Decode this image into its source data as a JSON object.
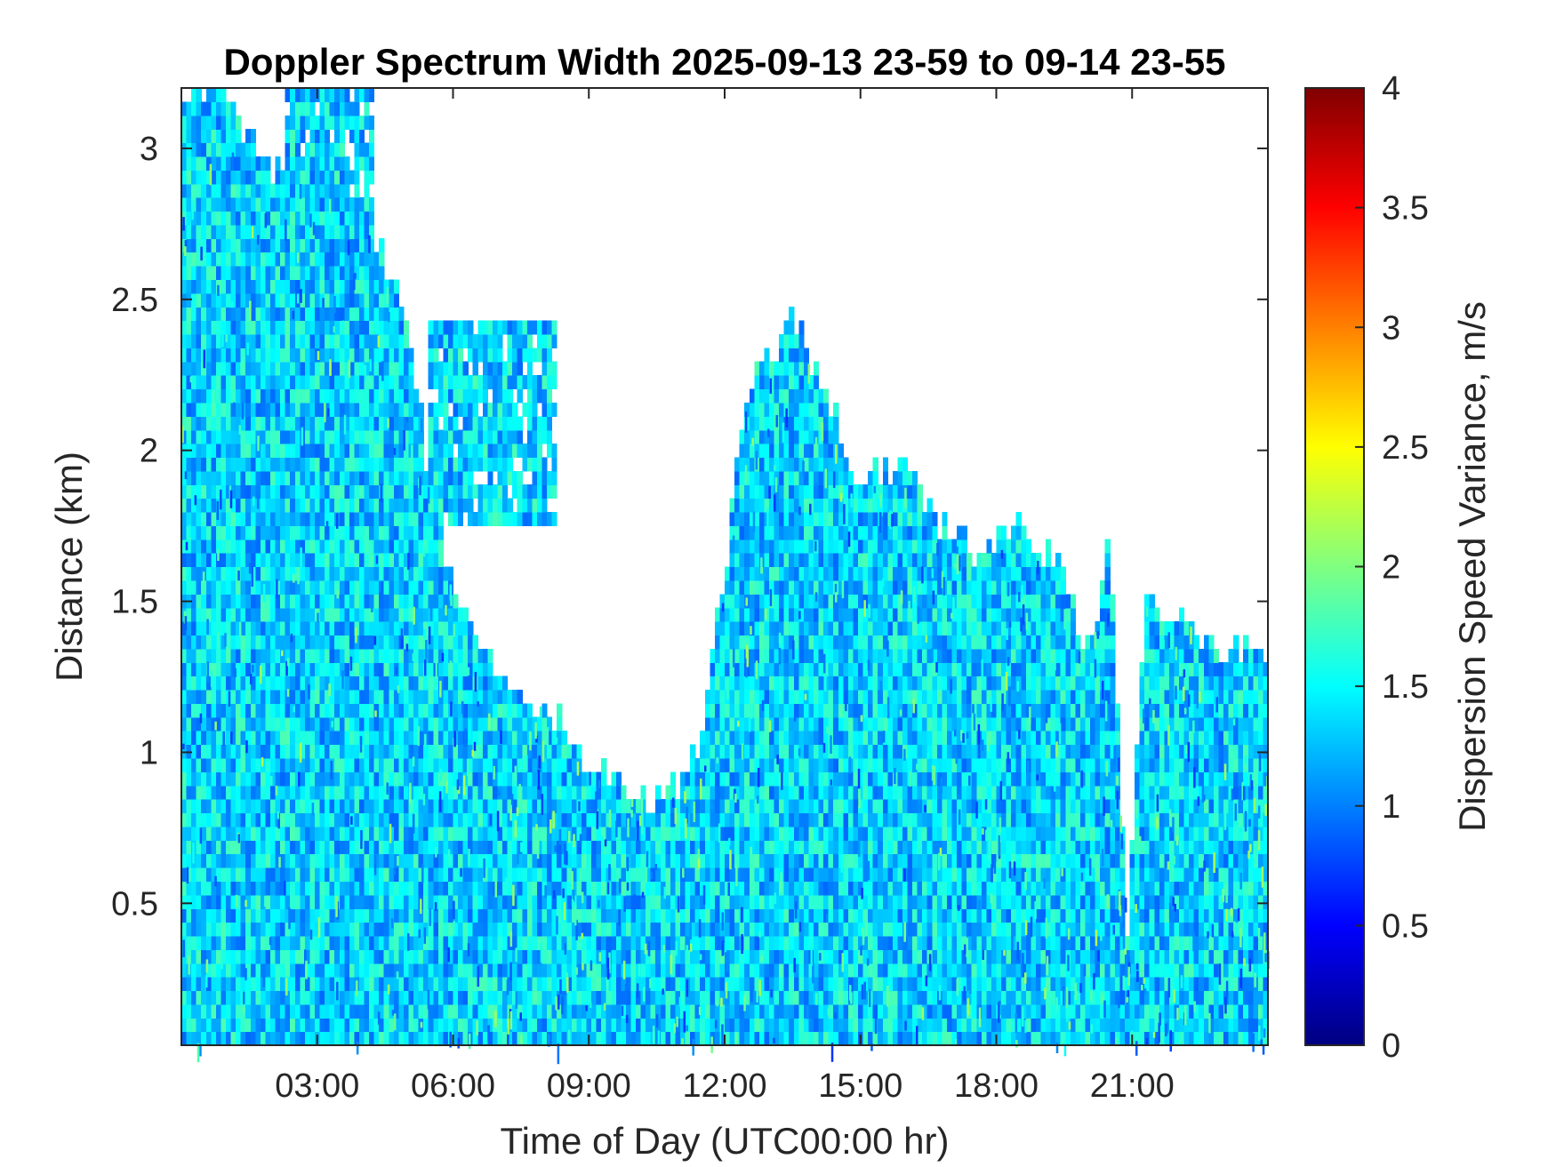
{
  "chart_data": {
    "type": "heatmap",
    "title": "Doppler Spectrum Width 2025-09-13 23-59 to 09-14 23-55",
    "xlabel": "Time of Day (UTC00:00 hr)",
    "ylabel": "Distance (km)",
    "colorbar_label": "Dispersion Speed Variance, m/s",
    "x_unit": "hours",
    "xlim": [
      0,
      24
    ],
    "ylim": [
      0.03,
      3.2
    ],
    "clim": [
      0,
      4
    ],
    "colormap": "jet",
    "background_color": "#ffffff",
    "x_ticks": [
      {
        "value": 3,
        "label": "03:00"
      },
      {
        "value": 6,
        "label": "06:00"
      },
      {
        "value": 9,
        "label": "09:00"
      },
      {
        "value": 12,
        "label": "12:00"
      },
      {
        "value": 15,
        "label": "15:00"
      },
      {
        "value": 18,
        "label": "18:00"
      },
      {
        "value": 21,
        "label": "21:00"
      }
    ],
    "y_ticks": [
      {
        "value": 0.5,
        "label": "0.5"
      },
      {
        "value": 1,
        "label": "1"
      },
      {
        "value": 1.5,
        "label": "1.5"
      },
      {
        "value": 2,
        "label": "2"
      },
      {
        "value": 2.5,
        "label": "2.5"
      },
      {
        "value": 3,
        "label": "3"
      }
    ],
    "colorbar_ticks": [
      {
        "value": 0,
        "label": "0"
      },
      {
        "value": 0.5,
        "label": "0.5"
      },
      {
        "value": 1,
        "label": "1"
      },
      {
        "value": 1.5,
        "label": "1.5"
      },
      {
        "value": 2,
        "label": "2"
      },
      {
        "value": 2.5,
        "label": "2.5"
      },
      {
        "value": 3,
        "label": "3"
      },
      {
        "value": 3.5,
        "label": "3.5"
      },
      {
        "value": 4,
        "label": "4"
      }
    ],
    "typical_value": 1.35,
    "signal_top_profile": [
      {
        "x": 0.0,
        "top": 3.2
      },
      {
        "x": 1.0,
        "top": 3.2
      },
      {
        "x": 2.0,
        "top": 2.9
      },
      {
        "x": 3.0,
        "top": 3.0
      },
      {
        "x": 4.0,
        "top": 2.8
      },
      {
        "x": 5.0,
        "top": 2.4
      },
      {
        "x": 5.5,
        "top": 1.9
      },
      {
        "x": 6.0,
        "top": 1.55
      },
      {
        "x": 7.0,
        "top": 1.25
      },
      {
        "x": 8.0,
        "top": 1.15
      },
      {
        "x": 9.0,
        "top": 0.95
      },
      {
        "x": 10.0,
        "top": 0.85
      },
      {
        "x": 11.0,
        "top": 0.9
      },
      {
        "x": 11.5,
        "top": 1.05
      },
      {
        "x": 12.0,
        "top": 1.6
      },
      {
        "x": 12.5,
        "top": 2.2
      },
      {
        "x": 13.5,
        "top": 2.45
      },
      {
        "x": 14.5,
        "top": 2.1
      },
      {
        "x": 15.0,
        "top": 1.88
      },
      {
        "x": 16.0,
        "top": 1.95
      },
      {
        "x": 16.5,
        "top": 1.8
      },
      {
        "x": 17.5,
        "top": 1.65
      },
      {
        "x": 18.5,
        "top": 1.75
      },
      {
        "x": 19.5,
        "top": 1.6
      },
      {
        "x": 20.0,
        "top": 1.3
      },
      {
        "x": 20.5,
        "top": 1.7
      },
      {
        "x": 20.9,
        "top": 0.4
      },
      {
        "x": 21.3,
        "top": 1.5
      },
      {
        "x": 22.0,
        "top": 1.45
      },
      {
        "x": 23.0,
        "top": 1.35
      },
      {
        "x": 24.0,
        "top": 1.3
      }
    ],
    "elevated_regions": [
      {
        "x_start": 5.5,
        "x_end": 8.3,
        "y_bottom": 1.75,
        "y_top": 2.45
      },
      {
        "x_start": 2.3,
        "x_end": 4.2,
        "y_bottom": 2.3,
        "y_top": 3.2
      }
    ]
  }
}
